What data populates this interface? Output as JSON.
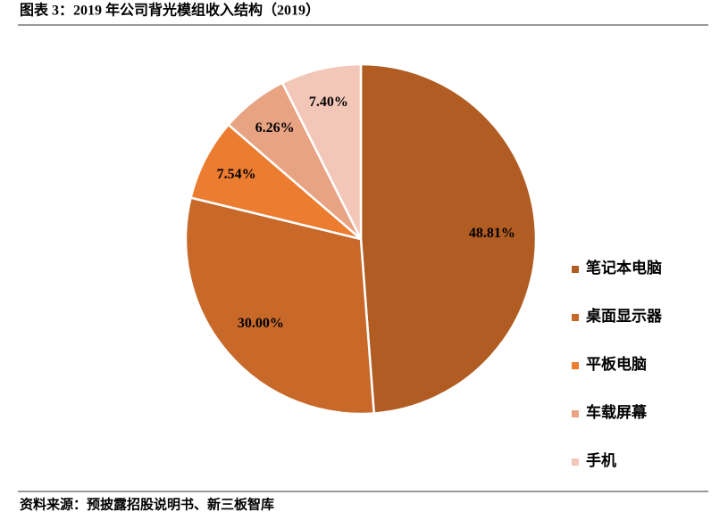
{
  "chart_data": {
    "type": "pie",
    "title": "图表 3：2019 年公司背光模组收入结构（2019）",
    "source": "资料来源：预披露招股说明书、新三板智库",
    "categories": [
      "笔记本电脑",
      "桌面显示器",
      "平板电脑",
      "车载屏幕",
      "手机"
    ],
    "values": [
      48.81,
      30.0,
      7.54,
      6.26,
      7.4
    ],
    "value_labels": [
      "48.81%",
      "30.00%",
      "7.54%",
      "6.26%",
      "7.40%"
    ],
    "colors": [
      "#b05c22",
      "#c8692a",
      "#ec7c30",
      "#e8a383",
      "#f3c7b8"
    ]
  }
}
